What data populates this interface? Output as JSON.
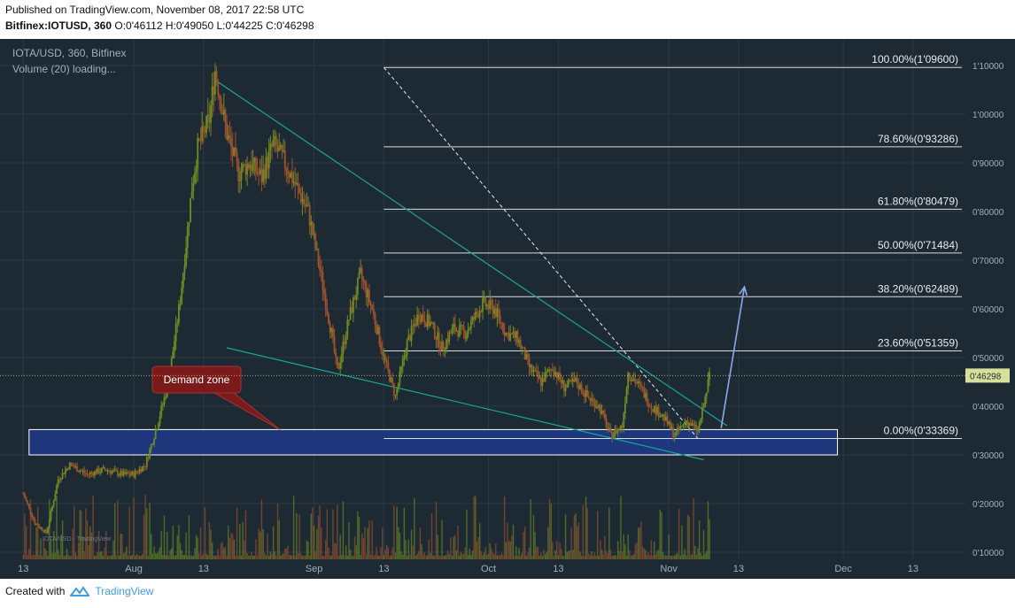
{
  "header": {
    "published": "Published on TradingView.com, November 08, 2017 22:58 UTC",
    "symbol": "Bitfinex:IOTUSD, 360",
    "ohlc": "O:0'46112 H:0'49050 L:0'44225 C:0'46298"
  },
  "footer": {
    "created_with": "Created with",
    "brand": "TradingView"
  },
  "colors": {
    "background": "#1e2a33",
    "up": "#6b8e23",
    "down": "#a0522d",
    "trendline": "#1aa693",
    "fib": "#d8dde0",
    "demand_zone": "#1f3a8a",
    "arrow": "#8fa8e8",
    "price_tag": "#d6e09b"
  },
  "chart_data": {
    "type": "candlestick",
    "symbol_label": "IOTA/USD, 360, Bitfinex",
    "volume_label": "Volume (20) loading...",
    "watermark": "IOTA/USD · TradingView",
    "x_ticks": [
      {
        "label": "13",
        "date": "2017-07-13"
      },
      {
        "label": "Aug",
        "date": "2017-08-01"
      },
      {
        "label": "13",
        "date": "2017-08-13"
      },
      {
        "label": "Sep",
        "date": "2017-09-01"
      },
      {
        "label": "13",
        "date": "2017-09-13"
      },
      {
        "label": "Oct",
        "date": "2017-10-01"
      },
      {
        "label": "13",
        "date": "2017-10-13"
      },
      {
        "label": "Nov",
        "date": "2017-11-01"
      },
      {
        "label": "13",
        "date": "2017-11-13"
      },
      {
        "label": "Dec",
        "date": "2017-12-01"
      },
      {
        "label": "13",
        "date": "2017-12-13"
      }
    ],
    "y_ticks": [
      {
        "label": "1'10000",
        "value": 1.1
      },
      {
        "label": "1'00000",
        "value": 1.0
      },
      {
        "label": "0'90000",
        "value": 0.9
      },
      {
        "label": "0'80000",
        "value": 0.8
      },
      {
        "label": "0'70000",
        "value": 0.7
      },
      {
        "label": "0'60000",
        "value": 0.6
      },
      {
        "label": "0'50000",
        "value": 0.5
      },
      {
        "label": "0'40000",
        "value": 0.4
      },
      {
        "label": "0'30000",
        "value": 0.3
      },
      {
        "label": "0'20000",
        "value": 0.2
      },
      {
        "label": "0'10000",
        "value": 0.1
      }
    ],
    "ylim": [
      0.1,
      1.1
    ],
    "grid": true,
    "last_price": {
      "label": "0'46298",
      "value": 0.46298
    },
    "price_path": [
      [
        "2017-07-13",
        0.22
      ],
      [
        "2017-07-15",
        0.16
      ],
      [
        "2017-07-17",
        0.14
      ],
      [
        "2017-07-19",
        0.25
      ],
      [
        "2017-07-21",
        0.28
      ],
      [
        "2017-07-24",
        0.26
      ],
      [
        "2017-07-27",
        0.27
      ],
      [
        "2017-07-30",
        0.26
      ],
      [
        "2017-08-01",
        0.26
      ],
      [
        "2017-08-03",
        0.28
      ],
      [
        "2017-08-05",
        0.36
      ],
      [
        "2017-08-07",
        0.45
      ],
      [
        "2017-08-09",
        0.62
      ],
      [
        "2017-08-11",
        0.85
      ],
      [
        "2017-08-12",
        0.93
      ],
      [
        "2017-08-14",
        0.99
      ],
      [
        "2017-08-15",
        1.09
      ],
      [
        "2017-08-17",
        0.96
      ],
      [
        "2017-08-19",
        0.88
      ],
      [
        "2017-08-21",
        0.9
      ],
      [
        "2017-08-23",
        0.87
      ],
      [
        "2017-08-25",
        0.94
      ],
      [
        "2017-08-27",
        0.9
      ],
      [
        "2017-08-29",
        0.85
      ],
      [
        "2017-08-31",
        0.8
      ],
      [
        "2017-09-02",
        0.68
      ],
      [
        "2017-09-04",
        0.55
      ],
      [
        "2017-09-05",
        0.47
      ],
      [
        "2017-09-07",
        0.58
      ],
      [
        "2017-09-09",
        0.67
      ],
      [
        "2017-09-11",
        0.6
      ],
      [
        "2017-09-13",
        0.5
      ],
      [
        "2017-09-15",
        0.42
      ],
      [
        "2017-09-17",
        0.53
      ],
      [
        "2017-09-19",
        0.59
      ],
      [
        "2017-09-21",
        0.57
      ],
      [
        "2017-09-23",
        0.52
      ],
      [
        "2017-09-25",
        0.56
      ],
      [
        "2017-09-27",
        0.55
      ],
      [
        "2017-09-30",
        0.61
      ],
      [
        "2017-10-02",
        0.6
      ],
      [
        "2017-10-04",
        0.55
      ],
      [
        "2017-10-06",
        0.54
      ],
      [
        "2017-10-08",
        0.48
      ],
      [
        "2017-10-10",
        0.45
      ],
      [
        "2017-10-12",
        0.48
      ],
      [
        "2017-10-14",
        0.44
      ],
      [
        "2017-10-16",
        0.45
      ],
      [
        "2017-10-18",
        0.42
      ],
      [
        "2017-10-20",
        0.4
      ],
      [
        "2017-10-22",
        0.34
      ],
      [
        "2017-10-24",
        0.36
      ],
      [
        "2017-10-25",
        0.47
      ],
      [
        "2017-10-27",
        0.44
      ],
      [
        "2017-10-29",
        0.4
      ],
      [
        "2017-10-31",
        0.38
      ],
      [
        "2017-11-02",
        0.34
      ],
      [
        "2017-11-04",
        0.37
      ],
      [
        "2017-11-06",
        0.35
      ],
      [
        "2017-11-07",
        0.4
      ],
      [
        "2017-11-08",
        0.46298
      ]
    ],
    "annotations": {
      "fibonacci": [
        {
          "label": "100.00%(1'09600)",
          "value": 1.096
        },
        {
          "label": "78.60%(0'93286)",
          "value": 0.93286
        },
        {
          "label": "61.80%(0'80479)",
          "value": 0.80479
        },
        {
          "label": "50.00%(0'71484)",
          "value": 0.71484
        },
        {
          "label": "38.20%(0'62489)",
          "value": 0.62489
        },
        {
          "label": "23.60%(0'51359)",
          "value": 0.51359
        },
        {
          "label": "0.00%(0'33369)",
          "value": 0.33369
        }
      ],
      "demand_zone": {
        "label": "Demand zone",
        "start": "2017-07-14",
        "end": "2017-11-30",
        "low": 0.3,
        "high": 0.352
      },
      "upper_trendline": [
        [
          "2017-08-15",
          1.07
        ],
        [
          "2017-11-11",
          0.36
        ]
      ],
      "lower_trendline": [
        [
          "2017-08-17",
          0.52
        ],
        [
          "2017-11-07",
          0.29
        ]
      ],
      "fib_anchor": [
        [
          "2017-09-13",
          1.096
        ],
        [
          "2017-11-06",
          0.33369
        ]
      ],
      "projection_arrow": [
        [
          "2017-11-10",
          0.355
        ],
        [
          "2017-11-14",
          0.645
        ]
      ]
    }
  }
}
